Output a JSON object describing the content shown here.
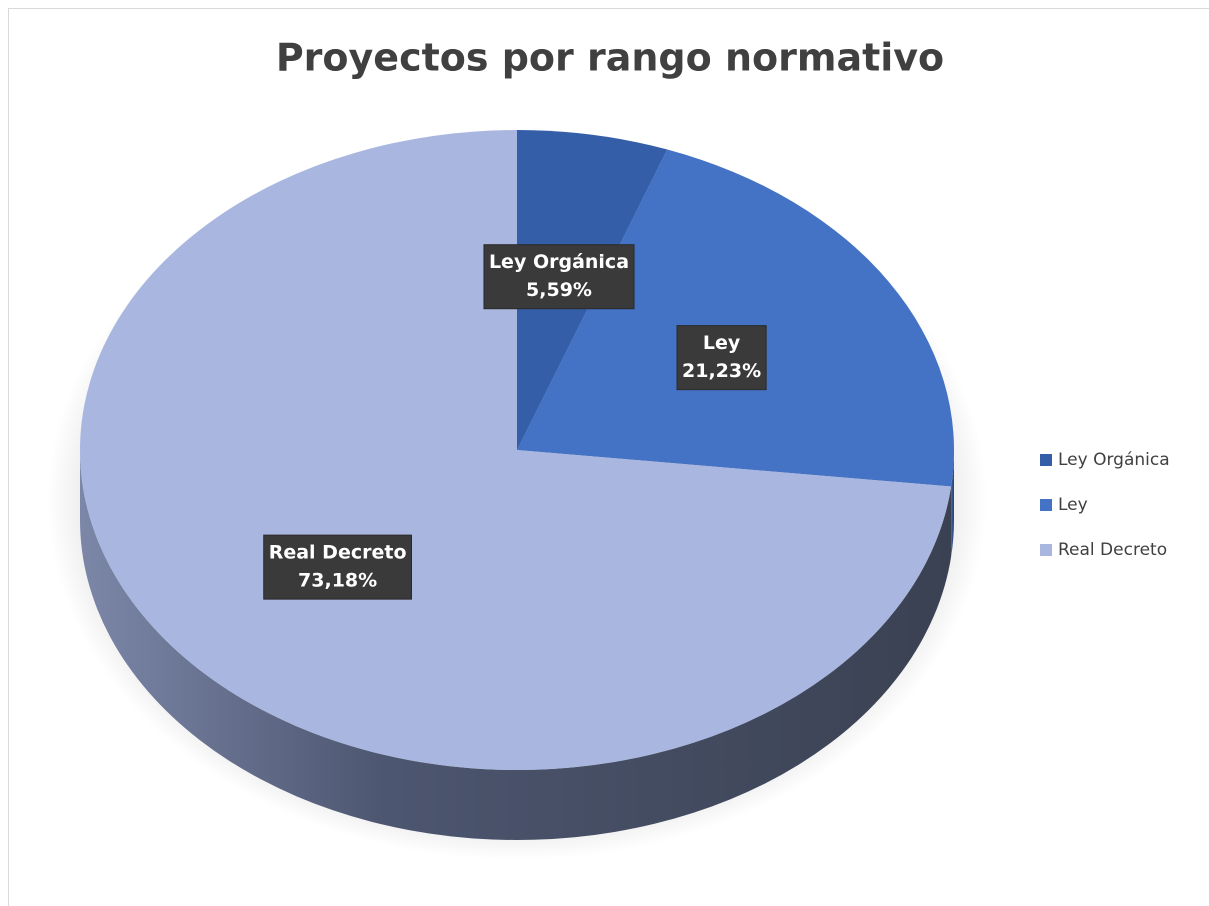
{
  "chart_data": {
    "type": "pie",
    "title": "Proyectos por rango normativo",
    "categories": [
      "Ley Orgánica",
      "Ley",
      "Real Decreto"
    ],
    "values": [
      5.59,
      21.23,
      73.18
    ],
    "value_labels": [
      "5,59%",
      "21,23%",
      "73,18%"
    ],
    "colors": [
      "#345ea8",
      "#4472c4",
      "#a9b6e0"
    ],
    "legend": "right"
  }
}
